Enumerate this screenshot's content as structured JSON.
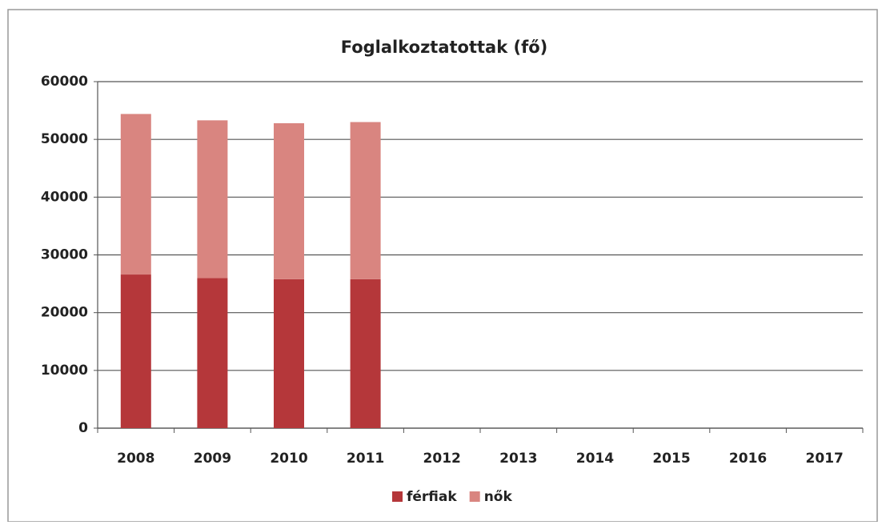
{
  "chart_data": {
    "type": "stacked_bar",
    "title": "Foglalkoztatottak (fő)",
    "categories": [
      "2008",
      "2009",
      "2010",
      "2011",
      "2012",
      "2013",
      "2014",
      "2015",
      "2016",
      "2017"
    ],
    "series": [
      {
        "name": "férfiak",
        "color": "#b5373a",
        "values": [
          26600,
          26000,
          25800,
          25800,
          null,
          null,
          null,
          null,
          null,
          null
        ]
      },
      {
        "name": "nők",
        "color": "#d98580",
        "values": [
          27800,
          27300,
          27000,
          27200,
          null,
          null,
          null,
          null,
          null,
          null
        ]
      }
    ],
    "ylim": [
      0,
      60000
    ],
    "yticks": [
      0,
      10000,
      20000,
      30000,
      40000,
      50000,
      60000
    ],
    "grid": true,
    "legend": "bottom"
  }
}
